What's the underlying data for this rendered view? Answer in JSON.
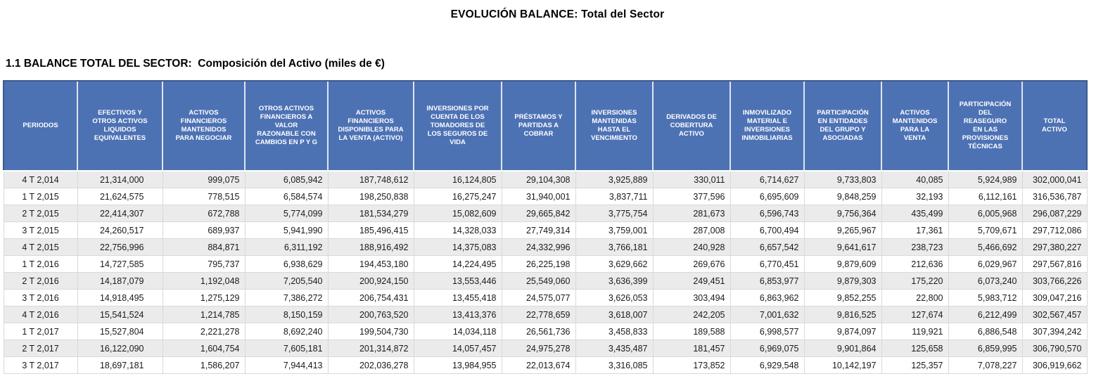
{
  "title": "EVOLUCIÓN BALANCE: Total del Sector",
  "section_title": "1.1 BALANCE TOTAL DEL SECTOR:  Composición del Activo (miles de €)",
  "colors": {
    "header_bg": "#4d72b4",
    "header_text": "#ffffff",
    "stripe": "#ebebeb",
    "border": "#d9d9d9"
  },
  "table": {
    "columns": [
      "PERIODOS",
      "EFECTIVOS Y OTROS ACTIVOS LIQUIDOS EQUIVALENTES",
      "ACTIVOS FINANCIEROS MANTENIDOS PARA NEGOCIAR",
      "OTROS ACTIVOS FINANCIEROS A VALOR RAZONABLE CON CAMBIOS EN P y G",
      "ACTIVOS FINANCIEROS DISPONIBLES PARA LA VENTA (ACTIVO)",
      "INVERSIONES POR CUENTA DE LOS TOMADORES DE LOS SEGUROS DE VIDA",
      "PRÉSTAMOS Y PARTIDAS A COBRAR",
      "INVERSIONES MANTENIDAS HASTA EL VENCIMIENTO",
      "DERIVADOS DE COBERTURA ACTIVO",
      "INMOVILIZADO MATERIAL E INVERSIONES INMOBILIARIAS",
      "PARTICIPACIÓN EN ENTIDADES DEL GRUPO Y ASOCIADAS",
      "ACTIVOS MANTENIDOS PARA LA VENTA",
      "PARTICIPACIÓN DEL REASEGURO EN LAS PROVISIONES TÉCNICAS",
      "TOTAL ACTIVO"
    ],
    "rows": [
      [
        "4 T 2,014",
        "21,314,000",
        "999,075",
        "6,085,942",
        "187,748,612",
        "16,124,805",
        "29,104,308",
        "3,925,889",
        "330,011",
        "6,714,627",
        "9,733,803",
        "40,085",
        "5,924,989",
        "302,000,041"
      ],
      [
        "1 T 2,015",
        "21,624,575",
        "778,515",
        "6,584,574",
        "198,250,838",
        "16,275,247",
        "31,940,001",
        "3,837,711",
        "377,596",
        "6,695,609",
        "9,848,259",
        "32,193",
        "6,112,161",
        "316,536,787"
      ],
      [
        "2 T 2,015",
        "22,414,307",
        "672,788",
        "5,774,099",
        "181,534,279",
        "15,082,609",
        "29,665,842",
        "3,775,754",
        "281,673",
        "6,596,743",
        "9,756,364",
        "435,499",
        "6,005,968",
        "296,087,229"
      ],
      [
        "3 T 2,015",
        "24,260,517",
        "689,937",
        "5,941,990",
        "185,496,415",
        "14,328,033",
        "27,749,314",
        "3,759,001",
        "287,008",
        "6,700,494",
        "9,265,967",
        "17,361",
        "5,709,671",
        "297,712,086"
      ],
      [
        "4 T 2,015",
        "22,756,996",
        "884,871",
        "6,311,192",
        "188,916,492",
        "14,375,083",
        "24,332,996",
        "3,766,181",
        "240,928",
        "6,657,542",
        "9,641,617",
        "238,723",
        "5,466,692",
        "297,380,227"
      ],
      [
        "1 T 2,016",
        "14,727,585",
        "795,737",
        "6,938,629",
        "194,453,180",
        "14,224,495",
        "26,225,198",
        "3,629,662",
        "269,676",
        "6,770,451",
        "9,879,609",
        "212,636",
        "6,029,967",
        "297,567,816"
      ],
      [
        "2 T 2,016",
        "14,187,079",
        "1,192,048",
        "7,205,540",
        "200,924,150",
        "13,553,446",
        "25,549,060",
        "3,636,399",
        "249,451",
        "6,853,977",
        "9,879,303",
        "175,220",
        "6,073,240",
        "303,766,226"
      ],
      [
        "3 T 2,016",
        "14,918,495",
        "1,275,129",
        "7,386,272",
        "206,754,431",
        "13,455,418",
        "24,575,077",
        "3,626,053",
        "303,494",
        "6,863,962",
        "9,852,255",
        "22,800",
        "5,983,712",
        "309,047,216"
      ],
      [
        "4 T 2,016",
        "15,541,524",
        "1,214,785",
        "8,150,159",
        "200,763,520",
        "13,413,376",
        "22,778,659",
        "3,618,007",
        "242,205",
        "7,001,632",
        "9,816,525",
        "127,674",
        "6,212,499",
        "302,567,457"
      ],
      [
        "1 T 2,017",
        "15,527,804",
        "2,221,278",
        "8,692,240",
        "199,504,730",
        "14,034,118",
        "26,561,736",
        "3,458,833",
        "189,588",
        "6,998,577",
        "9,874,097",
        "119,921",
        "6,886,548",
        "307,394,242"
      ],
      [
        "2 T 2,017",
        "16,122,090",
        "1,604,754",
        "7,605,181",
        "201,314,872",
        "14,057,457",
        "24,975,278",
        "3,435,487",
        "181,457",
        "6,969,075",
        "9,901,864",
        "125,658",
        "6,859,995",
        "306,790,570"
      ],
      [
        "3 T 2,017",
        "18,697,181",
        "1,586,207",
        "7,944,413",
        "202,036,278",
        "13,984,955",
        "22,013,674",
        "3,316,085",
        "173,852",
        "6,929,548",
        "10,142,197",
        "125,357",
        "7,078,227",
        "306,919,662"
      ]
    ]
  }
}
